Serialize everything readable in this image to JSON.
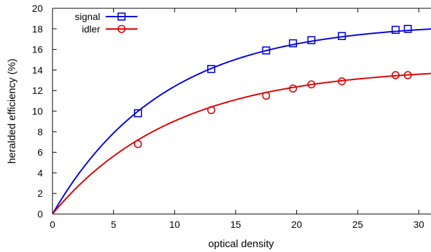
{
  "chart_data": {
    "type": "line",
    "title": "",
    "xlabel": "optical density",
    "ylabel": "heralded efficiency (%)",
    "xlim": [
      0,
      31
    ],
    "ylim": [
      0,
      20
    ],
    "xticks": [
      0,
      5,
      10,
      15,
      20,
      25,
      30
    ],
    "yticks": [
      0,
      2,
      4,
      6,
      8,
      10,
      12,
      14,
      16,
      18,
      20
    ],
    "grid": false,
    "legend_position": "top-left",
    "series": [
      {
        "name": "signal",
        "color": "#0000dd",
        "marker": "square",
        "points": [
          {
            "x": 7.0,
            "y": 9.8
          },
          {
            "x": 13.0,
            "y": 14.1
          },
          {
            "x": 17.5,
            "y": 15.9
          },
          {
            "x": 19.7,
            "y": 16.6
          },
          {
            "x": 21.2,
            "y": 16.9
          },
          {
            "x": 23.7,
            "y": 17.3
          },
          {
            "x": 28.1,
            "y": 17.9
          },
          {
            "x": 29.1,
            "y": 18.0
          }
        ],
        "fit": {
          "A": 18.6,
          "B": 0.11
        }
      },
      {
        "name": "idler",
        "color": "#dd0000",
        "marker": "circle",
        "points": [
          {
            "x": 7.0,
            "y": 6.8
          },
          {
            "x": 13.0,
            "y": 10.1
          },
          {
            "x": 17.5,
            "y": 11.5
          },
          {
            "x": 19.7,
            "y": 12.2
          },
          {
            "x": 21.2,
            "y": 12.6
          },
          {
            "x": 23.7,
            "y": 12.9
          },
          {
            "x": 28.1,
            "y": 13.5
          },
          {
            "x": 29.1,
            "y": 13.5
          }
        ],
        "fit": {
          "A": 14.3,
          "B": 0.1
        }
      }
    ]
  }
}
